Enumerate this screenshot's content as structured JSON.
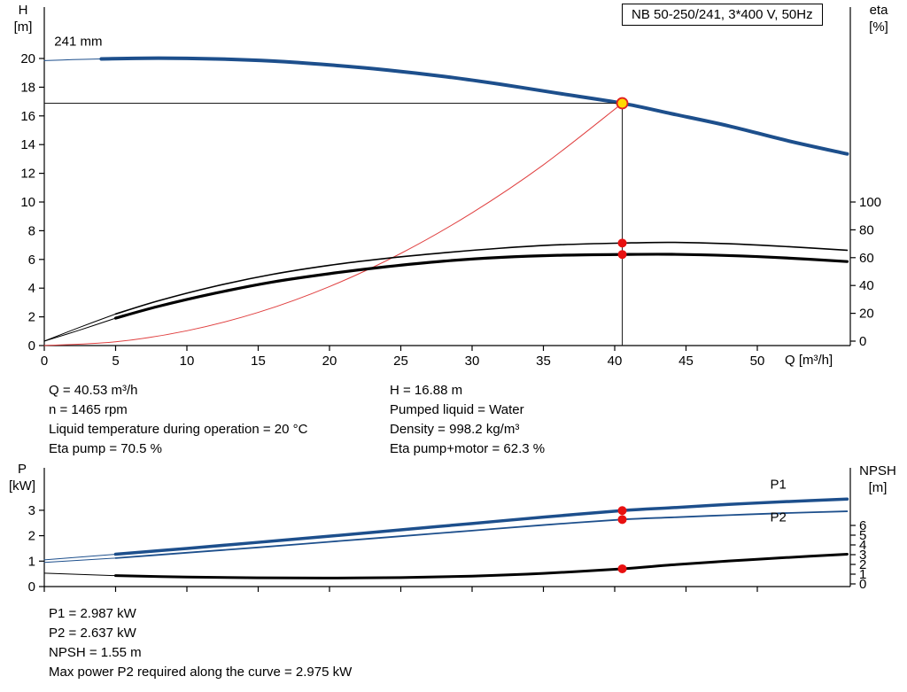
{
  "header": {
    "title": "NB 50-250/241, 3*400 V, 50Hz"
  },
  "chart_data": [
    {
      "type": "line",
      "title": "Pump performance curve (H/Q with efficiency)",
      "xlabel": "Q [m³/h]",
      "ylabel_left": "H\n[m]",
      "ylabel_right": "eta\n[%]",
      "xlim": [
        0,
        56.5
      ],
      "x_ticks": [
        0,
        5,
        10,
        15,
        20,
        25,
        30,
        35,
        40,
        45,
        50
      ],
      "x_tick_labels": true,
      "ylim_left": [
        0,
        23.5
      ],
      "y_ticks_left": [
        0,
        2,
        4,
        6,
        8,
        10,
        12,
        14,
        16,
        18,
        20
      ],
      "ylim_right": [
        0,
        120
      ],
      "y_ticks_right": [
        0,
        20,
        40,
        60,
        80,
        100
      ],
      "grid": false,
      "legend": "none",
      "impeller_diameter_label": "241 mm",
      "series": [
        {
          "name": "head-curve-leadin",
          "axis": "left",
          "color": "#1d4f8c",
          "width": 1,
          "points": [
            [
              0,
              19.85
            ],
            [
              2,
              19.92
            ],
            [
              4,
              19.97
            ]
          ]
        },
        {
          "name": "head-curve",
          "axis": "left",
          "color": "#1d4f8c",
          "width": 4,
          "points": [
            [
              4,
              19.97
            ],
            [
              8,
              20.02
            ],
            [
              12,
              19.97
            ],
            [
              16,
              19.82
            ],
            [
              20,
              19.55
            ],
            [
              24,
              19.2
            ],
            [
              28,
              18.75
            ],
            [
              32,
              18.2
            ],
            [
              36,
              17.58
            ],
            [
              40.53,
              16.88
            ],
            [
              44,
              16.15
            ],
            [
              48,
              15.3
            ],
            [
              52,
              14.3
            ],
            [
              56.3,
              13.35
            ]
          ]
        },
        {
          "name": "system-curve",
          "axis": "left",
          "color": "#e04040",
          "width": 1,
          "points": [
            [
              0,
              0
            ],
            [
              5,
              0.26
            ],
            [
              10,
              1.03
            ],
            [
              15,
              2.31
            ],
            [
              20,
              4.11
            ],
            [
              25,
              6.42
            ],
            [
              30,
              9.25
            ],
            [
              35,
              12.59
            ],
            [
              40.53,
              16.88
            ]
          ]
        },
        {
          "name": "eta-pump-leadin",
          "axis": "right",
          "color": "#000000",
          "width": 1,
          "points": [
            [
              0,
              0
            ],
            [
              2.5,
              10
            ],
            [
              5,
              19.5
            ]
          ]
        },
        {
          "name": "eta-pump-curve",
          "axis": "right",
          "color": "#000000",
          "width": 1.6,
          "points": [
            [
              5,
              19.5
            ],
            [
              8,
              29
            ],
            [
              12,
              39.5
            ],
            [
              16,
              48
            ],
            [
              20,
              54.5
            ],
            [
              24,
              59.5
            ],
            [
              28,
              63.5
            ],
            [
              32,
              66.8
            ],
            [
              36,
              69.2
            ],
            [
              40.53,
              70.5
            ],
            [
              44,
              71
            ],
            [
              48,
              70
            ],
            [
              52,
              68
            ],
            [
              56.3,
              65.3
            ]
          ]
        },
        {
          "name": "eta-pump-motor-leadin",
          "axis": "right",
          "color": "#000000",
          "width": 1,
          "points": [
            [
              0,
              0
            ],
            [
              2.5,
              8
            ],
            [
              5,
              16.5
            ]
          ]
        },
        {
          "name": "eta-pump-motor-curve",
          "axis": "right",
          "color": "#000000",
          "width": 3.2,
          "points": [
            [
              5,
              16.5
            ],
            [
              8,
              25
            ],
            [
              12,
              34.5
            ],
            [
              16,
              42.5
            ],
            [
              20,
              48.5
            ],
            [
              24,
              53.5
            ],
            [
              28,
              57.5
            ],
            [
              32,
              60.2
            ],
            [
              36,
              61.7
            ],
            [
              40.53,
              62.3
            ],
            [
              44,
              62.4
            ],
            [
              48,
              61.5
            ],
            [
              52,
              59.8
            ],
            [
              56.3,
              57.2
            ]
          ]
        }
      ],
      "crosshair": {
        "q": 40.53,
        "v": 16.88,
        "axis": "left"
      },
      "operating_point": {
        "q": 40.53,
        "v": 16.88,
        "axis": "left",
        "fill": "#ffd800",
        "stroke": "#e02020"
      },
      "markers": [
        {
          "q": 40.53,
          "v": 70.5,
          "axis": "right",
          "color": "#e81010"
        },
        {
          "q": 40.53,
          "v": 62.3,
          "axis": "right",
          "color": "#e81010"
        }
      ],
      "annotations": [
        {
          "text": "241 mm",
          "q": 0.7,
          "v": 20.9,
          "axis": "left",
          "color": "#000000"
        }
      ]
    },
    {
      "type": "line",
      "title": "Power and NPSH curves",
      "xlabel": "",
      "ylabel_left": "P\n[kW]",
      "ylabel_right": "NPSH\n[m]",
      "xlim": [
        0,
        56.5
      ],
      "x_ticks": [
        0,
        5,
        10,
        15,
        20,
        25,
        30,
        35,
        40,
        45,
        50
      ],
      "x_tick_labels": false,
      "ylim_left": [
        0,
        4.6
      ],
      "y_ticks_left": [
        0,
        1,
        2,
        3
      ],
      "ylim_right": [
        0,
        12
      ],
      "y_ticks_right": [
        0,
        1,
        2,
        3,
        4,
        5,
        6
      ],
      "grid": false,
      "legend": "inline",
      "series": [
        {
          "name": "p1-curve-leadin",
          "axis": "left",
          "color": "#1d4f8c",
          "width": 1,
          "points": [
            [
              0,
              1.05
            ],
            [
              5,
              1.27
            ]
          ]
        },
        {
          "name": "p1-curve",
          "axis": "left",
          "color": "#1d4f8c",
          "width": 3.5,
          "points": [
            [
              5,
              1.27
            ],
            [
              10,
              1.5
            ],
            [
              15,
              1.74
            ],
            [
              20,
              1.98
            ],
            [
              25,
              2.23
            ],
            [
              30,
              2.48
            ],
            [
              35,
              2.73
            ],
            [
              40.53,
              2.987
            ],
            [
              44,
              3.1
            ],
            [
              48,
              3.23
            ],
            [
              52,
              3.34
            ],
            [
              56.3,
              3.44
            ]
          ]
        },
        {
          "name": "p2-curve-leadin",
          "axis": "left",
          "color": "#1d4f8c",
          "width": 1,
          "points": [
            [
              0,
              0.95
            ],
            [
              5,
              1.12
            ]
          ]
        },
        {
          "name": "p2-curve",
          "axis": "left",
          "color": "#1d4f8c",
          "width": 1.8,
          "points": [
            [
              5,
              1.12
            ],
            [
              10,
              1.33
            ],
            [
              15,
              1.54
            ],
            [
              20,
              1.76
            ],
            [
              25,
              1.98
            ],
            [
              30,
              2.2
            ],
            [
              35,
              2.42
            ],
            [
              40.53,
              2.637
            ],
            [
              44,
              2.72
            ],
            [
              48,
              2.81
            ],
            [
              52,
              2.89
            ],
            [
              56.3,
              2.96
            ]
          ]
        },
        {
          "name": "npsh-curve-leadin",
          "axis": "right",
          "color": "#000000",
          "width": 1,
          "points": [
            [
              0,
              1.1
            ],
            [
              5,
              0.85
            ]
          ]
        },
        {
          "name": "npsh-curve",
          "axis": "right",
          "color": "#000000",
          "width": 3,
          "points": [
            [
              5,
              0.85
            ],
            [
              10,
              0.7
            ],
            [
              15,
              0.63
            ],
            [
              20,
              0.6
            ],
            [
              25,
              0.65
            ],
            [
              30,
              0.8
            ],
            [
              35,
              1.08
            ],
            [
              40.53,
              1.55
            ],
            [
              44,
              1.95
            ],
            [
              48,
              2.35
            ],
            [
              52,
              2.7
            ],
            [
              56.3,
              3.05
            ]
          ]
        }
      ],
      "markers": [
        {
          "q": 40.53,
          "v": 2.987,
          "axis": "left",
          "color": "#e81010"
        },
        {
          "q": 40.53,
          "v": 2.637,
          "axis": "left",
          "color": "#e81010"
        },
        {
          "q": 40.53,
          "v": 1.55,
          "axis": "right",
          "color": "#e81010"
        }
      ],
      "annotations": [
        {
          "text": "P1",
          "q": 50.9,
          "v": 3.85,
          "axis": "left",
          "color": "#1d4f8c"
        },
        {
          "text": "P2",
          "q": 50.9,
          "v": 2.56,
          "axis": "left",
          "color": "#1d4f8c"
        }
      ]
    }
  ],
  "results_top": {
    "left": [
      "Q = 40.53 m³/h",
      "n = 1465 rpm",
      "Liquid temperature during operation = 20 °C",
      "Eta pump = 70.5 %"
    ],
    "right": [
      "H = 16.88 m",
      "Pumped liquid = Water",
      "Density = 998.2 kg/m³",
      "Eta pump+motor = 62.3 %"
    ]
  },
  "results_bottom": [
    "P1 = 2.987 kW",
    "P2 = 2.637 kW",
    "NPSH = 1.55 m",
    "Max power P2 required along the curve = 2.975 kW"
  ]
}
